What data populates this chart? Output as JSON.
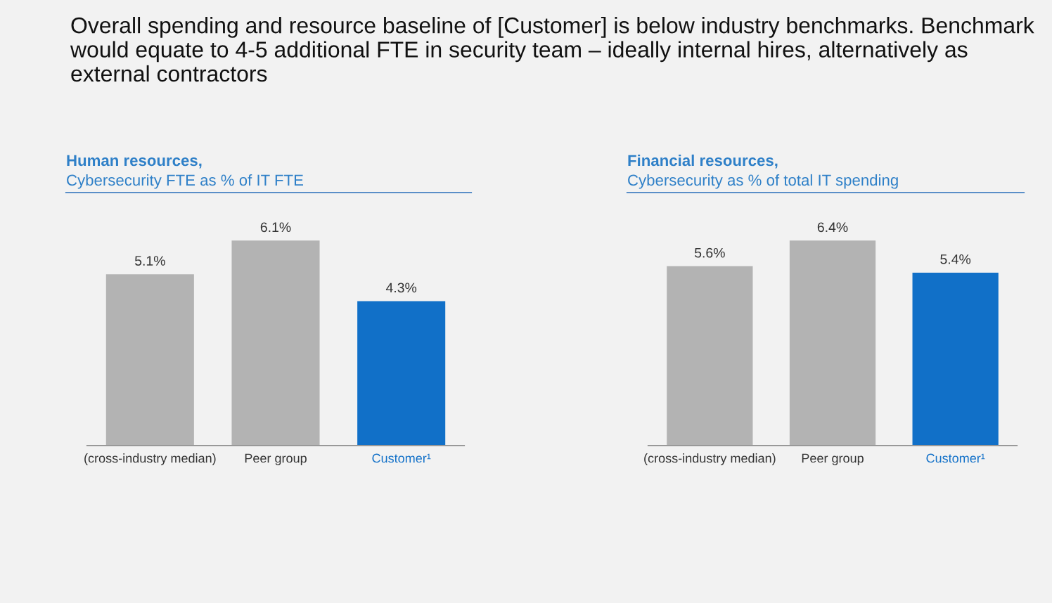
{
  "chart_data": [
    {
      "type": "bar",
      "title": "Human resources,",
      "subtitle": "Cybersecurity FTE as % of IT FTE",
      "annotations": [
        "Overall spending and resource baseline of [Customer] is below industry benchmarks. Benchmark would equate to 4-5 additional FTE in security team – ideally internal hires, alternatively as external contractors"
      ],
      "categories": [
        "(cross-industry median)",
        "Peer group",
        "Customer¹"
      ],
      "values": [
        5.1,
        6.1,
        4.3
      ],
      "colors": [
        "#b3b3b3",
        "#b3b3b3",
        "#1170c8"
      ],
      "value_labels": [
        "5.1%",
        "6.1%",
        "4.3%"
      ],
      "tick_labels": "x",
      "grid": false,
      "legend": false
    },
    {
      "type": "bar",
      "title": "Financial resources,",
      "subtitle": "Cybersecurity as % of total IT spending",
      "categories": [
        "(cross-industry median)",
        "Peer group",
        "Customer¹"
      ],
      "values": [
        5.6,
        6.4,
        5.4
      ],
      "colors": [
        "#b3b3b3",
        "#b3b3b3",
        "#1170c8"
      ],
      "value_labels": [
        "5.6%",
        "6.4%",
        "5.4%"
      ],
      "tick_labels": "x",
      "grid": false,
      "legend": false
    }
  ]
}
